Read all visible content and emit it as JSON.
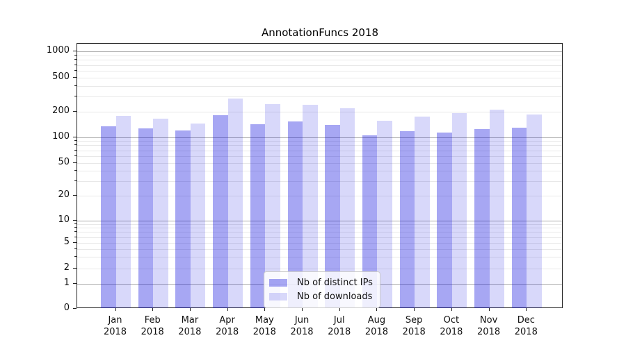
{
  "title": "AnnotationFuncs 2018",
  "legend": {
    "position": "lower center",
    "items": [
      {
        "label": "Nb of distinct IPs",
        "series_key": "ips"
      },
      {
        "label": "Nb of downloads",
        "series_key": "downloads"
      }
    ]
  },
  "colors": {
    "bar_ips": "rgba(10,10,222,0.36)",
    "bar_ips_hex": "#a8a8f3",
    "bar_downloads": "rgba(10,10,222,0.16)",
    "bar_downloads_hex": "#d8d8fa",
    "grid_major": "#aaaaaa",
    "grid_minor": "#e8e8e8",
    "axis_frame": "#222222",
    "text": "#111111"
  },
  "chart_data": {
    "type": "bar",
    "title": "AnnotationFuncs 2018",
    "categories": [
      "Jan 2018",
      "Feb 2018",
      "Mar 2018",
      "Apr 2018",
      "May 2018",
      "Jun 2018",
      "Jul 2018",
      "Aug 2018",
      "Sep 2018",
      "Oct 2018",
      "Nov 2018",
      "Dec 2018"
    ],
    "series": [
      {
        "name": "Nb of distinct IPs",
        "values": [
          135,
          127,
          120,
          182,
          141,
          153,
          140,
          105,
          118,
          113,
          125,
          130
        ]
      },
      {
        "name": "Nb of downloads",
        "values": [
          178,
          165,
          146,
          285,
          245,
          240,
          220,
          156,
          174,
          191,
          212,
          184
        ]
      }
    ],
    "xlabel": "",
    "ylabel": "",
    "yscale": "symlog",
    "yticks": [
      0,
      1,
      2,
      5,
      10,
      20,
      50,
      100,
      200,
      500,
      1000
    ],
    "ylim": [
      0,
      1200
    ],
    "grid": true,
    "legend_position": "lower center"
  }
}
